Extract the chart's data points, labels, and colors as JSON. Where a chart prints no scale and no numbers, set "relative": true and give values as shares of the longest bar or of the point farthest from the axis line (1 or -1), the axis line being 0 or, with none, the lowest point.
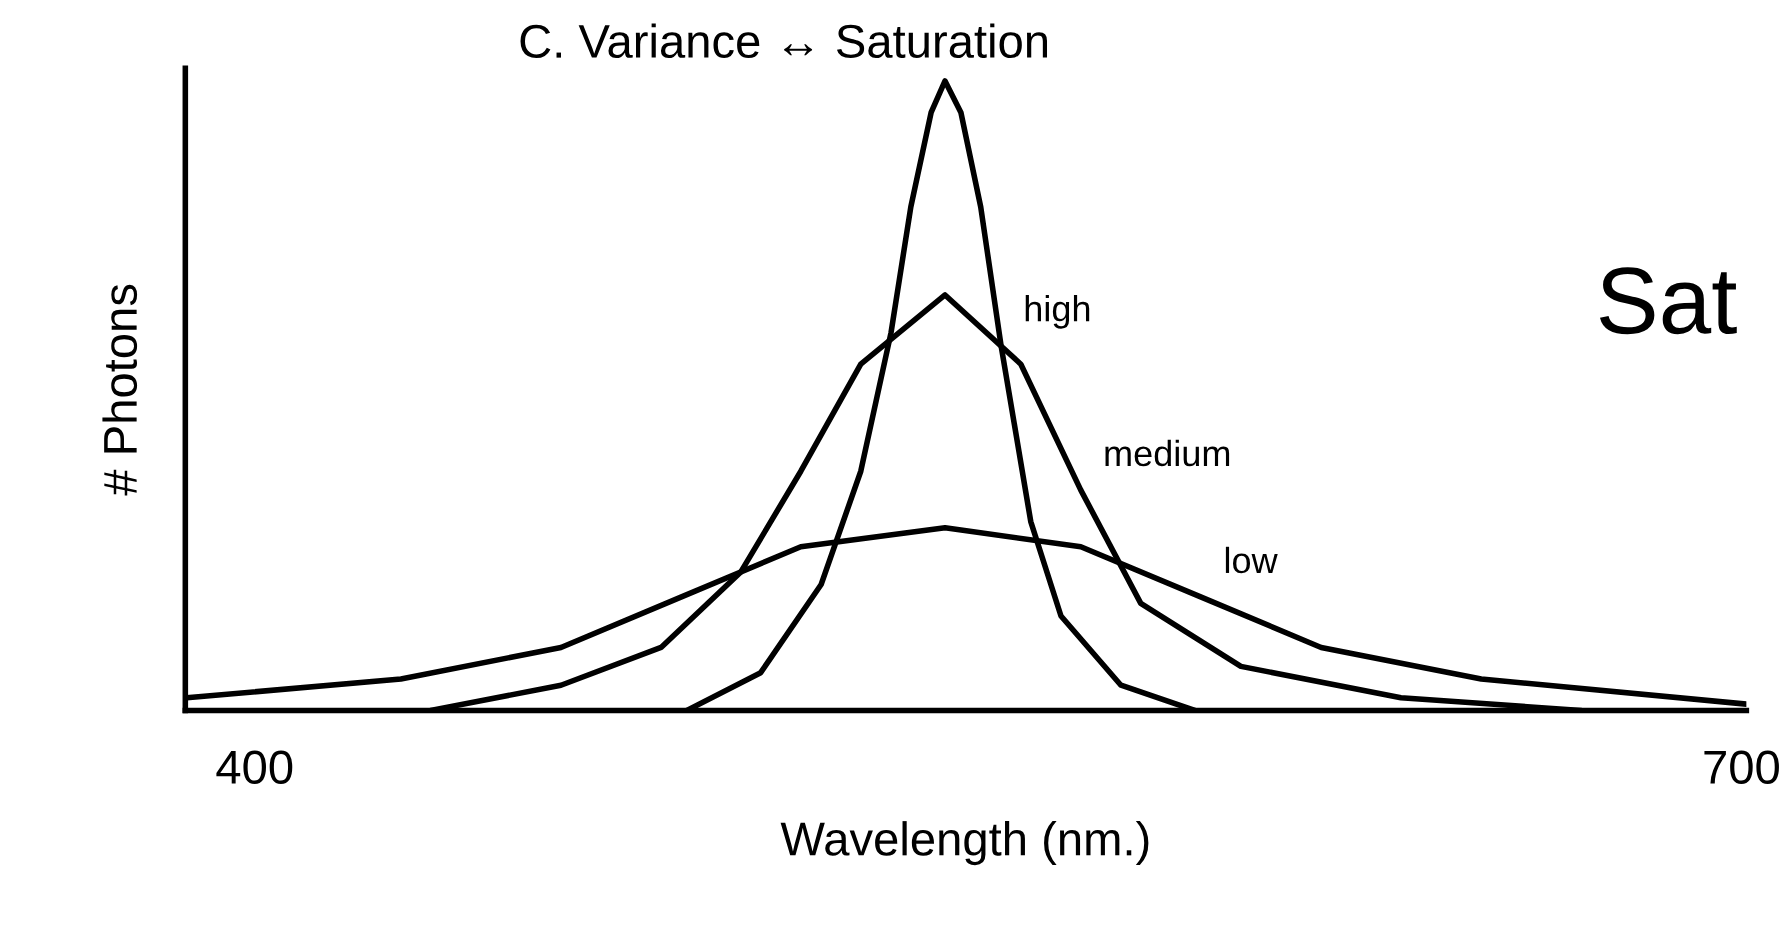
{
  "chart_data": {
    "type": "line",
    "title": "C. Variance ↔ Saturation",
    "xlabel": "Wavelength (nm.)",
    "ylabel": "# Photons",
    "relative": true,
    "xlim": [
      386,
      701
    ],
    "xticks": [
      400,
      700
    ],
    "series": [
      {
        "name": "high",
        "color": "#000000",
        "x": [
          487.2,
          502.1,
          514.3,
          522.3,
          528.4,
          532.4,
          536.5,
          539.3,
          542.5,
          546.5,
          550.6,
          556.6,
          562.7,
          574.8,
          589.7
        ],
        "values": [
          0,
          0.06,
          0.2,
          0.38,
          0.6,
          0.8,
          0.95,
          1.0,
          0.95,
          0.8,
          0.58,
          0.3,
          0.15,
          0.04,
          0
        ]
      },
      {
        "name": "medium",
        "color": "#000000",
        "x": [
          435.5,
          461.8,
          482.0,
          498.1,
          510.2,
          522.3,
          539.3,
          554.6,
          566.7,
          578.8,
          599.0,
          631.3,
          667.7
        ],
        "values": [
          0,
          0.04,
          0.1,
          0.22,
          0.38,
          0.55,
          0.66,
          0.55,
          0.35,
          0.17,
          0.07,
          0.02,
          0
        ]
      },
      {
        "name": "low",
        "color": "#000000",
        "x": [
          386.3,
          429.5,
          461.8,
          486.0,
          510.2,
          539.3,
          566.7,
          591.0,
          615.2,
          647.5,
          701.0
        ],
        "values": [
          0.02,
          0.05,
          0.1,
          0.18,
          0.26,
          0.29,
          0.26,
          0.18,
          0.1,
          0.05,
          0.01
        ]
      }
    ],
    "annotations": [
      "Sat"
    ]
  }
}
